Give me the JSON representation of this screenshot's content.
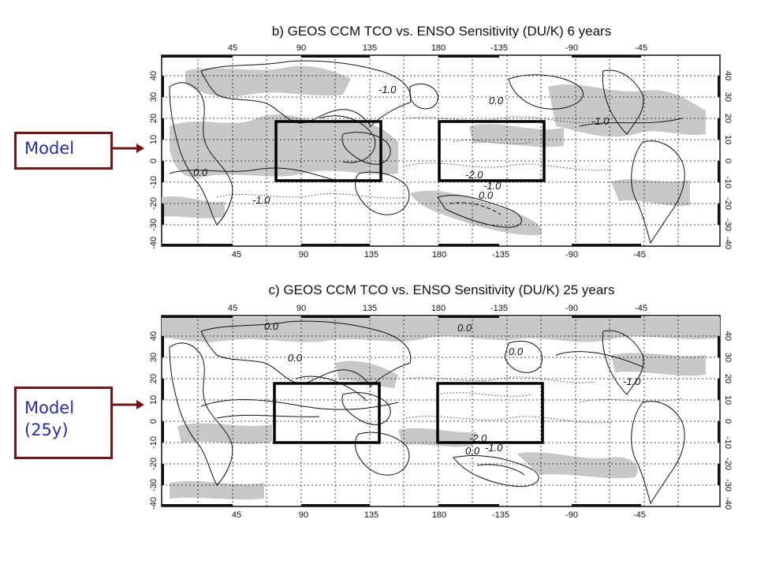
{
  "panels": [
    {
      "title": "b) GEOS CCM TCO vs. ENSO Sensitivity (DU/K) 6 years",
      "callout": "Model",
      "lon_ticks": [
        "45",
        "90",
        "135",
        "180",
        "-135",
        "-90",
        "-45"
      ],
      "lat_ticks": [
        "40",
        "30",
        "20",
        "10",
        "0",
        "-10",
        "-20",
        "-30",
        "-40"
      ],
      "contour_labels": [
        "-1.0",
        "0.0",
        "-1.0",
        "0.0",
        "-1.0",
        "-2.0",
        "-1.0",
        "0.0"
      ]
    },
    {
      "title": "c) GEOS CCM TCO vs. ENSO Sensitivity (DU/K) 25 years",
      "callout_line1": "Model",
      "callout_line2": "(25y)",
      "lon_ticks": [
        "45",
        "90",
        "135",
        "180",
        "-135",
        "-90",
        "-45"
      ],
      "lat_ticks": [
        "40",
        "30",
        "20",
        "10",
        "0",
        "-10",
        "-20",
        "-30",
        "-40"
      ],
      "contour_labels": [
        "0.0",
        "0.0",
        "0.0",
        "0.0",
        "-1.0",
        "-2.0",
        "0.0",
        "-1.0"
      ]
    }
  ],
  "colors": {
    "callout_border": "#7a1414",
    "callout_text": "#2a2ab0",
    "shading": "#c8c8c8"
  }
}
